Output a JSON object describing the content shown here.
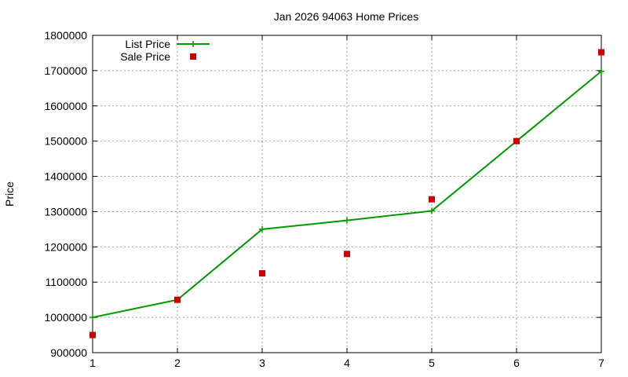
{
  "chart_data": {
    "type": "line",
    "title": "Jan 2026 94063 Home Prices",
    "xlabel": "",
    "ylabel": "Price",
    "x": [
      1,
      2,
      3,
      4,
      5,
      6,
      7
    ],
    "xlim": [
      1,
      7
    ],
    "ylim": [
      900000,
      1800000
    ],
    "xticks": [
      1,
      2,
      3,
      4,
      5,
      6,
      7
    ],
    "yticks": [
      900000,
      1000000,
      1100000,
      1200000,
      1300000,
      1400000,
      1500000,
      1600000,
      1700000,
      1800000
    ],
    "grid": true,
    "legend_position": "top-left",
    "series": [
      {
        "name": "List Price",
        "style": "line-points",
        "marker": "plus",
        "color": "#009900",
        "values": [
          1000000,
          1050000,
          1250000,
          1275000,
          1302000,
          1500000,
          1698000
        ]
      },
      {
        "name": "Sale Price",
        "style": "points",
        "marker": "square",
        "color": "#cc0000",
        "values": [
          950000,
          1050000,
          1125000,
          1180000,
          1335000,
          1500000,
          1752000
        ]
      }
    ]
  }
}
